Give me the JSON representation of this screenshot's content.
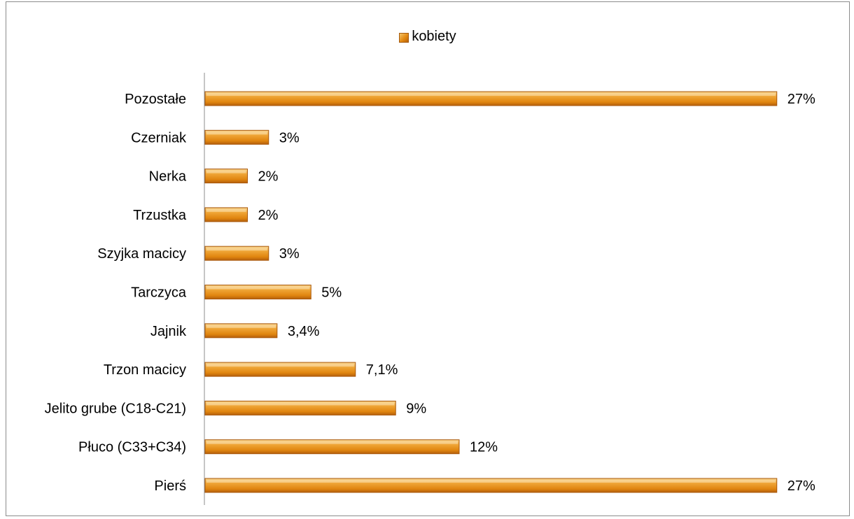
{
  "chart_data": {
    "type": "bar",
    "orientation": "horizontal",
    "categories": [
      "Pierś",
      "Płuco (C33+C34)",
      "Jelito grube (C18-C21)",
      "Trzon macicy",
      "Jajnik",
      "Tarczyca",
      "Szyjka macicy",
      "Trzustka",
      "Nerka",
      "Czerniak",
      "Pozostałe"
    ],
    "series": [
      {
        "name": "kobiety",
        "values": [
          27,
          12,
          9,
          7.1,
          3.4,
          5,
          3,
          2,
          2,
          3,
          27
        ],
        "labels": [
          "27%",
          "12%",
          "9%",
          "7,1%",
          "3,4%",
          "5%",
          "3%",
          "2%",
          "2%",
          "3%",
          "27%"
        ]
      }
    ],
    "xlim": [
      0,
      28
    ],
    "legend_position": "top",
    "grid": false,
    "colors": {
      "bar": "#e38a12",
      "bar_light": "#f6c978",
      "bar_dark": "#b45f0c"
    }
  }
}
